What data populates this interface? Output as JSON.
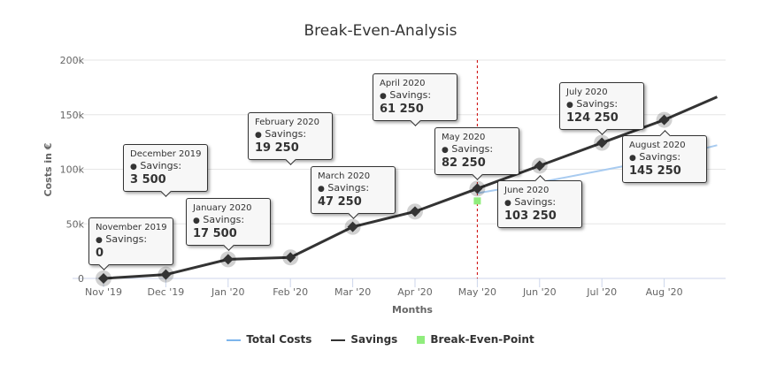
{
  "chart_data": {
    "type": "line",
    "title": "Break-Even-Analysis",
    "xlabel": "Months",
    "ylabel": "Costs in €",
    "categories": [
      "Nov '19",
      "Dec '19",
      "Jan '20",
      "Feb '20",
      "Mar '20",
      "Apr '20",
      "May '20",
      "Jun '20",
      "Jul '20",
      "Aug '20"
    ],
    "yticks": [
      "0",
      "50k",
      "100k",
      "150k",
      "200k"
    ],
    "ylim": [
      0,
      200000
    ],
    "grid": true,
    "legend_placement": "bottom",
    "series": [
      {
        "name": "Total Costs",
        "color": "#a8cbf0",
        "points": [
          [
            6,
            78000
          ],
          [
            7,
            88000
          ],
          [
            8,
            99000
          ],
          [
            9,
            110000
          ],
          [
            9.85,
            122000
          ]
        ]
      },
      {
        "name": "Savings",
        "color": "#333333",
        "values": [
          0,
          3500,
          17500,
          19250,
          47250,
          61250,
          82250,
          103250,
          124250,
          145250
        ],
        "end": [
          9.85,
          166250
        ]
      },
      {
        "name": "Break-Even-Point",
        "color": "#90ed7d",
        "points": [
          [
            6,
            71000
          ]
        ]
      }
    ],
    "break_even_marker": {
      "category": "May '20",
      "color": "#cc0000"
    },
    "tooltips": [
      {
        "title": "November 2019",
        "label": "Savings:",
        "value": "0"
      },
      {
        "title": "December 2019",
        "label": "Savings:",
        "value": "3 500"
      },
      {
        "title": "January 2020",
        "label": "Savings:",
        "value": "17 500"
      },
      {
        "title": "February 2020",
        "label": "Savings:",
        "value": "19 250"
      },
      {
        "title": "March 2020",
        "label": "Savings:",
        "value": "47 250"
      },
      {
        "title": "April 2020",
        "label": "Savings:",
        "value": "61 250"
      },
      {
        "title": "May 2020",
        "label": "Savings:",
        "value": "82 250"
      },
      {
        "title": "June 2020",
        "label": "Savings:",
        "value": "103 250"
      },
      {
        "title": "July 2020",
        "label": "Savings:",
        "value": "124 250"
      },
      {
        "title": "August 2020",
        "label": "Savings:",
        "value": "145 250"
      }
    ]
  }
}
